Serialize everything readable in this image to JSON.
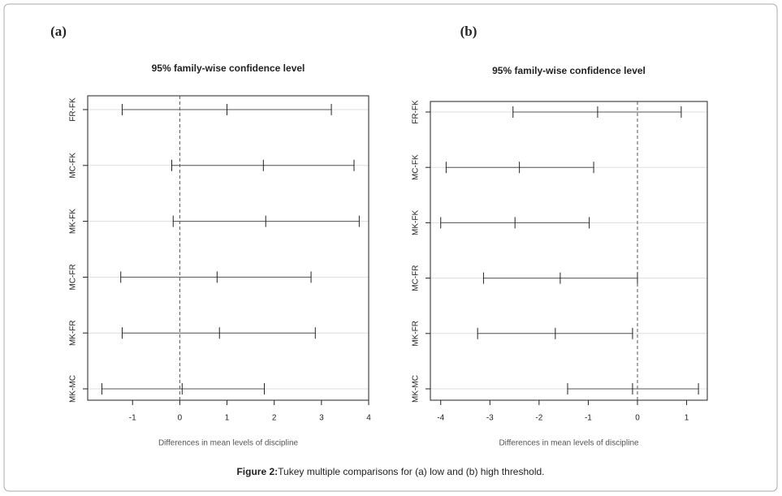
{
  "caption": {
    "label": "Figure 2:",
    "text": "Tukey multiple comparisons for (a) low and (b) high threshold."
  },
  "chart_data": [
    {
      "type": "interval",
      "panel_label": "(a)",
      "title": "95% family-wise confidence level",
      "x_label": "Differences in mean levels of discipline",
      "categories": [
        "FR-FK",
        "MC-FK",
        "MK-FK",
        "MC-FR",
        "MK-FR",
        "MK-MC"
      ],
      "lower": [
        -1.22,
        -0.17,
        -0.14,
        -1.25,
        -1.22,
        -1.65
      ],
      "values": [
        1.0,
        1.77,
        1.82,
        0.79,
        0.84,
        0.05
      ],
      "upper": [
        3.21,
        3.69,
        3.8,
        2.78,
        2.87,
        1.79
      ],
      "xlim": [
        -1.95,
        4.0
      ],
      "xticks": [
        -1,
        0,
        1,
        2,
        3,
        4
      ],
      "reference_line": 0,
      "grid": true,
      "color": "#555555"
    },
    {
      "type": "interval",
      "panel_label": "(b)",
      "title": "95% family-wise confidence level",
      "x_label": "Differences in mean levels of discipline",
      "categories": [
        "FR-FK",
        "MC-FK",
        "MK-FK",
        "MC-FR",
        "MK-FR",
        "MK-MC"
      ],
      "lower": [
        -2.53,
        -3.89,
        -4.0,
        -3.13,
        -3.25,
        -1.42
      ],
      "values": [
        -0.81,
        -2.4,
        -2.49,
        -1.57,
        -1.67,
        -0.1
      ],
      "upper": [
        0.89,
        -0.89,
        -0.98,
        0.0,
        -0.1,
        1.24
      ],
      "xlim": [
        -4.21,
        1.42
      ],
      "xticks": [
        -4,
        -3,
        -2,
        -1,
        0,
        1
      ],
      "reference_line": 0,
      "grid": true,
      "color": "#555555"
    }
  ]
}
